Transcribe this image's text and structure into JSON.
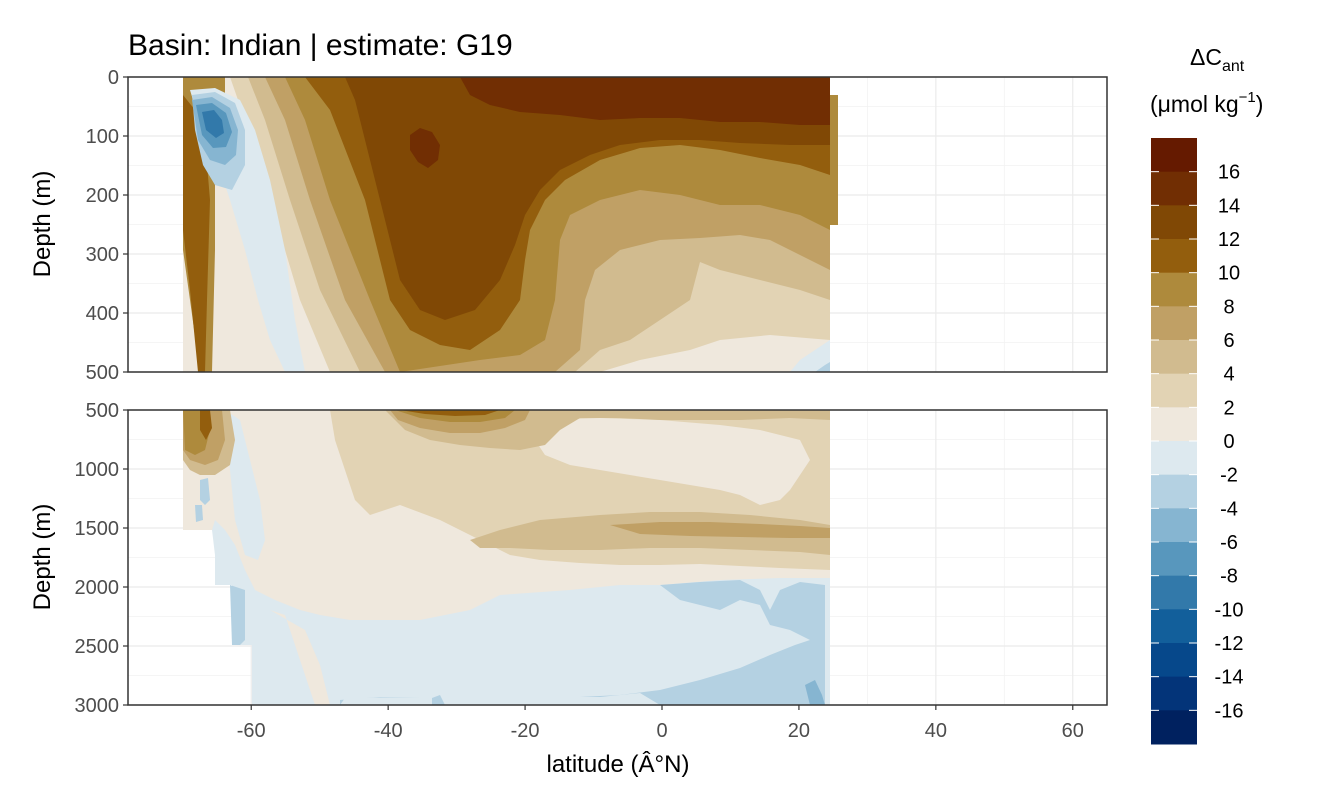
{
  "chart_data": {
    "type": "heatmap",
    "subtype": "filled-contour",
    "title": "Basin: Indian | estimate: G19",
    "xlabel": "latitude (Â°N)",
    "ylabel": "Depth (m)",
    "xlim": [
      -78,
      65
    ],
    "x_ticks": [
      -60,
      -40,
      -20,
      0,
      20,
      40,
      60
    ],
    "x_tick_labels": [
      "-60",
      "-40",
      "-20",
      "0",
      "20",
      "40",
      "60"
    ],
    "grid": true,
    "data_extent_lat": [
      -70,
      24.5
    ],
    "panels": [
      {
        "name": "upper",
        "ylim": [
          0,
          500
        ],
        "y_ticks": [
          0,
          100,
          200,
          300,
          400,
          500
        ],
        "y_tick_labels": [
          "0",
          "100",
          "200",
          "300",
          "400",
          "500"
        ]
      },
      {
        "name": "lower",
        "ylim": [
          500,
          3000
        ],
        "y_ticks": [
          500,
          1000,
          1500,
          2000,
          2500,
          3000
        ],
        "y_tick_labels": [
          "500",
          "1000",
          "1500",
          "2000",
          "2500",
          "3000"
        ]
      }
    ],
    "legend": {
      "title_main": "ΔC",
      "title_sub": "ant",
      "title_unit": "(μmol kg",
      "title_sup": "−1",
      "title_close": ")",
      "position": "right",
      "labels": [
        "16",
        "14",
        "12",
        "10",
        "8",
        "6",
        "4",
        "2",
        "0",
        "-2",
        "-4",
        "-6",
        "-8",
        "-10",
        "-12",
        "-14",
        "-16"
      ],
      "colors": [
        "#651a00",
        "#712e03",
        "#804805",
        "#935e0d",
        "#ae8a3c",
        "#c0a065",
        "#d1bb8f",
        "#e2d3b4",
        "#efe8dd",
        "#dde9ef",
        "#b4d1e2",
        "#86b5d1",
        "#5897bd",
        "#3279aa",
        "#125f9b",
        "#06488b",
        "#033479",
        "#00215f"
      ]
    },
    "approx_fields": {
      "upper_depth_0_500m": "predominantly positive (0 to 16); maximum >14 near surface 35S-10N; negative core -6 to -8 near 65S at 50-150 m",
      "lower_depth_500_3000m": "positive 2-12 near 500 m decreasing to 0-2; band 4-6 at ~1500-1700 m north of 0; mostly -2 to 0 below 2000 m; up to -4 to -6 near 20N at 3000 m"
    }
  }
}
